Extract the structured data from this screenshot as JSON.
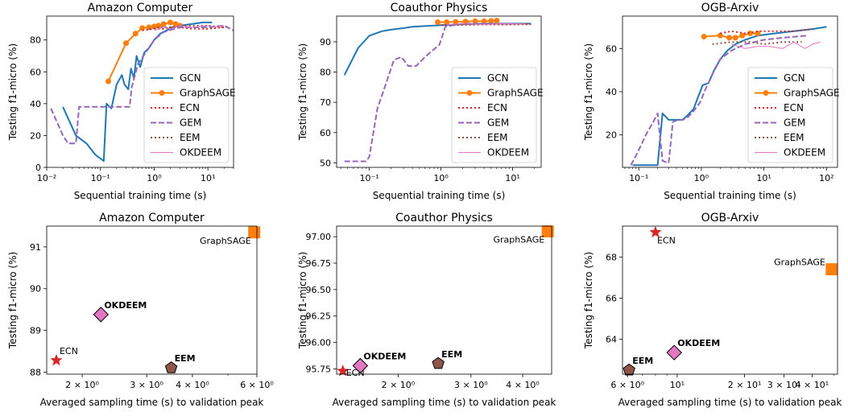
{
  "chart_data": [
    {
      "type": "line",
      "title": "Amazon Computer",
      "xlabel": "Sequential training time (s)",
      "ylabel": "Testing f1-micro (%)",
      "xscale": "log",
      "xlim": [
        0.01,
        30
      ],
      "ylim": [
        0,
        95
      ],
      "xticks": [
        {
          "v": 0.01,
          "label": "10⁻²"
        },
        {
          "v": 0.1,
          "label": "10⁻¹"
        },
        {
          "v": 1,
          "label": "10⁰"
        },
        {
          "v": 10,
          "label": "10¹"
        }
      ],
      "yticks": [
        0,
        20,
        40,
        60,
        80
      ],
      "legend_position": "lower-right",
      "series": [
        {
          "name": "GCN",
          "color": "#1f77b4",
          "style": "solid",
          "x": [
            0.02,
            0.035,
            0.055,
            0.08,
            0.115,
            0.13,
            0.16,
            0.2,
            0.25,
            0.28,
            0.33,
            0.37,
            0.42,
            0.47,
            0.55,
            0.65,
            0.8,
            1.0,
            1.3,
            1.7,
            2.2,
            3.0,
            5.0,
            8.0,
            12.0
          ],
          "y": [
            38,
            20,
            15,
            8,
            4,
            40,
            37,
            52,
            58,
            52,
            49,
            62,
            56,
            70,
            63,
            72,
            75,
            80,
            84,
            86,
            88,
            89,
            90,
            91,
            91
          ]
        },
        {
          "name": "GraphSAGE",
          "color": "#ff7f0e",
          "style": "marker",
          "x": [
            0.14,
            0.3,
            0.45,
            0.6,
            0.8,
            1.0,
            1.2,
            1.5,
            2.0,
            2.5,
            3.0
          ],
          "y": [
            54,
            78,
            84,
            87.5,
            88,
            88.5,
            89,
            90,
            91,
            90,
            89
          ]
        },
        {
          "name": "ECN",
          "color": "#d62728",
          "style": "dotted",
          "x": [
            0.6,
            1.0,
            1.5,
            2.0,
            3.0,
            5.0,
            10.0,
            20.0
          ],
          "y": [
            86,
            87,
            87,
            88,
            88,
            87,
            87,
            88
          ]
        },
        {
          "name": "GEM",
          "color": "#9467bd",
          "style": "dashed",
          "x": [
            0.012,
            0.02,
            0.025,
            0.035,
            0.04,
            0.1,
            0.2,
            0.25,
            0.3,
            0.35,
            0.38,
            0.5,
            0.8,
            1.0,
            1.5,
            3.0,
            10.0,
            20.0,
            30.0
          ],
          "y": [
            37,
            20,
            15,
            15,
            38,
            38,
            38,
            38,
            38,
            38,
            50,
            65,
            75,
            80,
            85,
            88,
            88,
            89,
            86
          ]
        },
        {
          "name": "EEM",
          "color": "#8c564b",
          "style": "dotted",
          "x": [
            0.8,
            1.2,
            2.0,
            3.0,
            5.0,
            10.0,
            20.0
          ],
          "y": [
            87,
            88,
            88,
            89,
            89,
            89,
            88
          ]
        },
        {
          "name": "OKDEEM",
          "color": "#e377c2",
          "style": "thin",
          "x": [
            1.0,
            1.5,
            2.0,
            3.0,
            5.0,
            10.0,
            15.0,
            20.0
          ],
          "y": [
            86,
            88,
            87,
            89,
            88,
            89,
            88,
            89
          ]
        }
      ]
    },
    {
      "type": "line",
      "title": "Coauthor Physics",
      "xlabel": "Sequential training time (s)",
      "ylabel": "Testing f1-micro (%)",
      "xscale": "log",
      "xlim": [
        0.035,
        25
      ],
      "ylim": [
        48.5,
        98.5
      ],
      "xticks": [
        {
          "v": 0.1,
          "label": "10⁻¹"
        },
        {
          "v": 1,
          "label": "10⁰"
        },
        {
          "v": 10,
          "label": "10¹"
        }
      ],
      "yticks": [
        50,
        60,
        70,
        80,
        90
      ],
      "legend_position": "lower-right",
      "series": [
        {
          "name": "GCN",
          "color": "#1f77b4",
          "style": "solid",
          "x": [
            0.045,
            0.07,
            0.1,
            0.15,
            0.2,
            0.3,
            0.4,
            0.6,
            1.0,
            2.0,
            4.0,
            8.0,
            18.0
          ],
          "y": [
            79,
            88,
            92,
            93.5,
            94,
            94.5,
            95,
            95.2,
            95.5,
            95.8,
            96,
            96,
            96
          ]
        },
        {
          "name": "GraphSAGE",
          "color": "#ff7f0e",
          "style": "marker",
          "x": [
            0.9,
            1.2,
            1.6,
            2.2,
            3.0,
            4.0,
            5.0,
            6.0
          ],
          "y": [
            96.5,
            96.5,
            96.6,
            96.7,
            96.8,
            96.8,
            96.9,
            97
          ]
        },
        {
          "name": "ECN",
          "color": "#d62728",
          "style": "dotted",
          "x": [
            1.0,
            2.0,
            4.0,
            8.0,
            18.0
          ],
          "y": [
            95.5,
            95.6,
            95.7,
            95.7,
            95.8
          ]
        },
        {
          "name": "GEM",
          "color": "#9467bd",
          "style": "dashed",
          "x": [
            0.045,
            0.06,
            0.09,
            0.1,
            0.13,
            0.17,
            0.22,
            0.28,
            0.35,
            0.45,
            0.6,
            0.75,
            0.95,
            1.15,
            1.5,
            2.0,
            5.0,
            10.0
          ],
          "y": [
            50.5,
            50.5,
            50.5,
            52,
            68,
            76,
            84,
            85,
            82,
            82,
            85,
            87,
            89,
            95,
            95.5,
            96,
            96,
            96
          ]
        },
        {
          "name": "EEM",
          "color": "#8c564b",
          "style": "dotted",
          "x": [
            1.5,
            3.0,
            6.0,
            12.0,
            18.0
          ],
          "y": [
            95.6,
            95.8,
            95.8,
            95.9,
            95.9
          ]
        },
        {
          "name": "OKDEEM",
          "color": "#e377c2",
          "style": "thin",
          "x": [
            1.2,
            2.0,
            4.0,
            8.0,
            15.0
          ],
          "y": [
            95.7,
            95.9,
            95.8,
            96,
            95.9
          ]
        }
      ]
    },
    {
      "type": "line",
      "title": "OGB-Arxiv",
      "xlabel": "Sequential training time (s)",
      "ylabel": "Testing f1-micro (%)",
      "xscale": "log",
      "xlim": [
        0.055,
        150
      ],
      "ylim": [
        5,
        75
      ],
      "xticks": [
        {
          "v": 0.1,
          "label": "10⁻¹"
        },
        {
          "v": 1,
          "label": "10⁰"
        },
        {
          "v": 10,
          "label": "10¹"
        },
        {
          "v": 100,
          "label": "10²"
        }
      ],
      "yticks": [
        20,
        40,
        60
      ],
      "legend_position": "lower-right",
      "series": [
        {
          "name": "GCN",
          "color": "#1f77b4",
          "style": "solid",
          "x": [
            0.08,
            0.2,
            0.24,
            0.3,
            0.42,
            0.5,
            0.6,
            0.75,
            0.9,
            1.05,
            1.3,
            1.6,
            2.0,
            2.6,
            3.5,
            5.0,
            8.0,
            15.0,
            30.0,
            60.0,
            100.0
          ],
          "y": [
            6,
            6,
            30,
            27,
            27,
            27,
            29,
            32,
            38,
            43,
            44,
            50,
            55,
            59,
            62,
            64,
            66,
            67,
            68,
            69,
            70
          ]
        },
        {
          "name": "GraphSAGE",
          "color": "#ff7f0e",
          "style": "marker",
          "x": [
            1.1,
            2.0,
            2.8,
            3.5,
            4.5,
            6.0,
            8.0
          ],
          "y": [
            65.5,
            66,
            65,
            65,
            66,
            67,
            67
          ]
        },
        {
          "name": "ECN",
          "color": "#d62728",
          "style": "dotted",
          "x": [
            2.0,
            3.0,
            5.0,
            8.0,
            15.0,
            30.0,
            60.0
          ],
          "y": [
            67,
            68,
            67,
            68,
            68,
            68,
            69
          ]
        },
        {
          "name": "GEM",
          "color": "#9467bd",
          "style": "dashed",
          "x": [
            0.075,
            0.1,
            0.13,
            0.17,
            0.2,
            0.24,
            0.3,
            0.35,
            0.42,
            0.5,
            0.6,
            0.75,
            0.95,
            1.2,
            1.5,
            2.0,
            3.0,
            5.0,
            10.0,
            20.0,
            50.0
          ],
          "y": [
            6,
            13,
            20,
            26,
            30,
            8,
            7,
            26,
            27,
            27,
            28,
            31,
            35,
            42,
            48,
            55,
            59,
            62,
            64,
            65,
            66
          ]
        },
        {
          "name": "EEM",
          "color": "#8c564b",
          "style": "dotted",
          "x": [
            1.5,
            3.0,
            6.0,
            10.0,
            20.0,
            40.0
          ],
          "y": [
            62,
            63,
            63,
            62,
            63,
            63
          ]
        },
        {
          "name": "OKDEEM",
          "color": "#e377c2",
          "style": "thin",
          "x": [
            3.0,
            5.0,
            8.0,
            12.0,
            20.0,
            30.0,
            45.0,
            60.0,
            80.0
          ],
          "y": [
            62,
            60,
            61,
            61,
            60,
            63,
            60,
            62,
            63
          ]
        }
      ]
    },
    {
      "type": "scatter",
      "title": "Amazon Computer",
      "xlabel": "Averaged sampling time (s) to validation peak",
      "ylabel": "Testing f1-micro (%)",
      "xscale": "log",
      "xlim": [
        1.6,
        6.0
      ],
      "ylim": [
        87.95,
        91.5
      ],
      "xticks": [
        {
          "v": 2,
          "label": "2 × 10⁰"
        },
        {
          "v": 3,
          "label": "3 × 10⁰"
        },
        {
          "v": 4,
          "label": "4 × 10⁰"
        },
        {
          "v": 6,
          "label": "6 × 10⁰"
        }
      ],
      "yticks": [
        88,
        89,
        90,
        91
      ],
      "points": [
        {
          "label": "ECN",
          "x": 1.7,
          "y": 88.28,
          "marker": "star",
          "color": "#d62728",
          "bold": false,
          "label_pos": "above-right"
        },
        {
          "label": "OKDEEM",
          "x": 2.25,
          "y": 89.38,
          "marker": "diamond",
          "color": "#e377c2",
          "bold": true,
          "label_pos": "above-right"
        },
        {
          "label": "EEM",
          "x": 3.5,
          "y": 88.1,
          "marker": "pentagon",
          "color": "#8c564b",
          "bold": true,
          "label_pos": "above-right"
        },
        {
          "label": "GraphSAGE",
          "x": 5.9,
          "y": 91.35,
          "marker": "square",
          "color": "#ff7f0e",
          "bold": false,
          "label_pos": "below-left"
        }
      ]
    },
    {
      "type": "scatter",
      "title": "Coauthor Physics",
      "xlabel": "Averaged sampling time (s) to validation peak",
      "ylabel": "Testing f1-micro (%)",
      "xscale": "log",
      "xlim": [
        1.42,
        4.7
      ],
      "ylim": [
        95.7,
        97.1
      ],
      "xticks": [
        {
          "v": 2,
          "label": "2 × 10⁰"
        },
        {
          "v": 3,
          "label": "3 × 10⁰"
        },
        {
          "v": 4,
          "label": "4 × 10⁰"
        }
      ],
      "yticks": [
        95.75,
        96.0,
        96.25,
        96.5,
        96.75,
        97.0
      ],
      "ytick_labels": [
        "95.75",
        "96.00",
        "96.25",
        "96.50",
        "96.75",
        "97.00"
      ],
      "points": [
        {
          "label": "ECN",
          "x": 1.47,
          "y": 95.73,
          "marker": "star",
          "color": "#d62728",
          "bold": false,
          "label_pos": "right"
        },
        {
          "label": "OKDEEM",
          "x": 1.62,
          "y": 95.78,
          "marker": "diamond",
          "color": "#e377c2",
          "bold": true,
          "label_pos": "above-right"
        },
        {
          "label": "EEM",
          "x": 2.5,
          "y": 95.8,
          "marker": "pentagon",
          "color": "#8c564b",
          "bold": true,
          "label_pos": "above-right"
        },
        {
          "label": "GraphSAGE",
          "x": 4.6,
          "y": 97.05,
          "marker": "square",
          "color": "#ff7f0e",
          "bold": false,
          "label_pos": "below-left"
        }
      ]
    },
    {
      "type": "scatter",
      "title": "OGB-Arxiv",
      "xlabel": "Averaged sampling time (s) to validation peak",
      "ylabel": "Testing f1-micro (%)",
      "xscale": "log",
      "xlim": [
        5.7,
        52
      ],
      "ylim": [
        62.3,
        69.5
      ],
      "xticks": [
        {
          "v": 6,
          "label": "6 × 10⁰"
        },
        {
          "v": 10,
          "label": "10¹"
        },
        {
          "v": 20,
          "label": "2 × 10¹"
        },
        {
          "v": 30,
          "label": "3 × 10¹"
        },
        {
          "v": 40,
          "label": "4 × 10¹"
        }
      ],
      "yticks": [
        64,
        66,
        68
      ],
      "points": [
        {
          "label": "ECN",
          "x": 8.0,
          "y": 69.2,
          "marker": "star",
          "color": "#d62728",
          "bold": false,
          "label_pos": "below-right"
        },
        {
          "label": "OKDEEM",
          "x": 9.7,
          "y": 63.35,
          "marker": "diamond",
          "color": "#e377c2",
          "bold": true,
          "label_pos": "above-right"
        },
        {
          "label": "EEM",
          "x": 6.1,
          "y": 62.5,
          "marker": "pentagon",
          "color": "#8c564b",
          "bold": true,
          "label_pos": "above-right"
        },
        {
          "label": "GraphSAGE",
          "x": 49.0,
          "y": 67.4,
          "marker": "square",
          "color": "#ff7f0e",
          "bold": false,
          "label_pos": "above-left"
        }
      ]
    }
  ]
}
